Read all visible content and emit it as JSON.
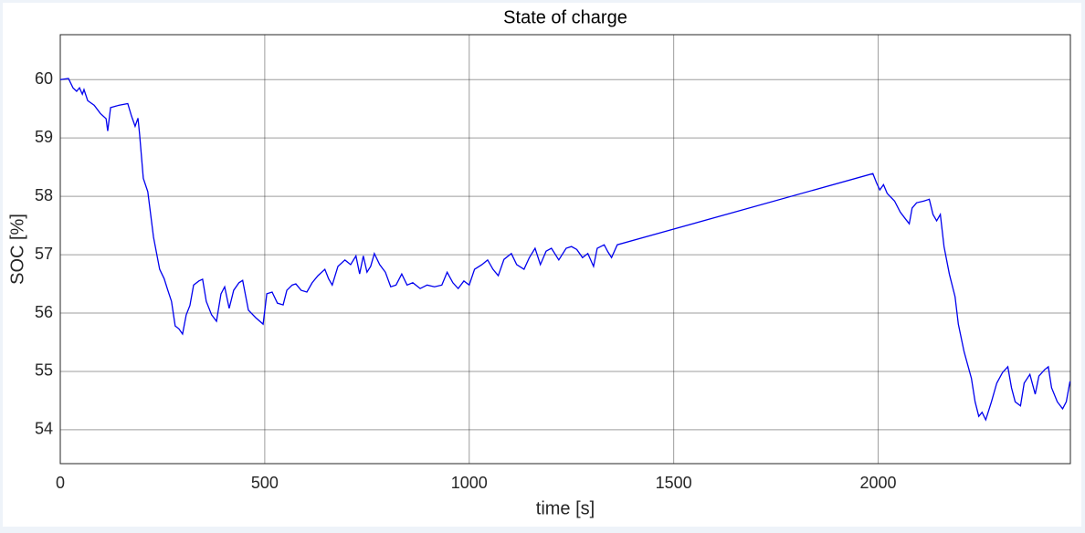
{
  "chart_data": {
    "type": "line",
    "title": "State of charge",
    "x_label": "time [s]",
    "y_label": "SOC [%]",
    "xlim": [
      0,
      2470
    ],
    "ylim": [
      53.42,
      60.77
    ],
    "xticks": [
      0,
      500,
      1000,
      1500,
      2000
    ],
    "yticks": [
      54,
      55,
      56,
      57,
      58,
      59,
      60
    ],
    "grid": true,
    "series": [
      {
        "name": "SOC",
        "color": "#0000ee",
        "x": [
          0,
          20,
          31,
          40,
          47,
          54,
          58,
          67,
          83,
          98,
          112,
          116,
          123,
          143,
          165,
          174,
          183,
          190,
          194,
          203,
          214,
          228,
          243,
          254,
          263,
          272,
          281,
          290,
          299,
          308,
          317,
          326,
          339,
          348,
          357,
          370,
          382,
          393,
          402,
          413,
          424,
          437,
          446,
          460,
          478,
          496,
          505,
          518,
          531,
          545,
          554,
          567,
          576,
          589,
          603,
          616,
          630,
          647,
          656,
          665,
          679,
          696,
          710,
          723,
          732,
          741,
          750,
          759,
          768,
          781,
          795,
          808,
          821,
          835,
          848,
          862,
          880,
          897,
          915,
          933,
          946,
          960,
          973,
          987,
          1000,
          1013,
          1031,
          1045,
          1058,
          1071,
          1085,
          1103,
          1116,
          1134,
          1147,
          1161,
          1174,
          1188,
          1201,
          1219,
          1237,
          1250,
          1263,
          1277,
          1290,
          1304,
          1313,
          1330,
          1339,
          1348,
          1362,
          1987,
          1996,
          2004,
          2013,
          2022,
          2040,
          2054,
          2067,
          2076,
          2083,
          2094,
          2112,
          2125,
          2134,
          2143,
          2152,
          2161,
          2174,
          2188,
          2196,
          2210,
          2219,
          2228,
          2237,
          2246,
          2254,
          2263,
          2277,
          2290,
          2304,
          2317,
          2326,
          2335,
          2348,
          2357,
          2371,
          2384,
          2393,
          2407,
          2416,
          2424,
          2438,
          2451,
          2460,
          2469
        ],
        "values": [
          60.0,
          60.02,
          59.86,
          59.8,
          59.86,
          59.75,
          59.83,
          59.64,
          59.56,
          59.42,
          59.33,
          59.12,
          59.52,
          59.56,
          59.59,
          59.38,
          59.2,
          59.34,
          59.06,
          58.31,
          58.08,
          57.3,
          56.75,
          56.59,
          56.39,
          56.2,
          55.78,
          55.73,
          55.64,
          55.97,
          56.13,
          56.48,
          56.55,
          56.58,
          56.2,
          55.97,
          55.86,
          56.33,
          56.45,
          56.08,
          56.39,
          56.52,
          56.56,
          56.05,
          55.92,
          55.81,
          56.33,
          56.36,
          56.17,
          56.14,
          56.39,
          56.48,
          56.5,
          56.39,
          56.36,
          56.52,
          56.64,
          56.75,
          56.59,
          56.48,
          56.8,
          56.91,
          56.83,
          56.98,
          56.67,
          56.98,
          56.7,
          56.8,
          57.02,
          56.83,
          56.7,
          56.45,
          56.48,
          56.67,
          56.48,
          56.52,
          56.42,
          56.48,
          56.45,
          56.48,
          56.7,
          56.52,
          56.42,
          56.55,
          56.48,
          56.75,
          56.83,
          56.91,
          56.75,
          56.64,
          56.92,
          57.02,
          56.83,
          56.75,
          56.95,
          57.11,
          56.83,
          57.06,
          57.11,
          56.91,
          57.11,
          57.14,
          57.09,
          56.95,
          57.02,
          56.8,
          57.11,
          57.17,
          57.05,
          56.95,
          57.17,
          58.39,
          58.23,
          58.11,
          58.2,
          58.05,
          57.92,
          57.73,
          57.61,
          57.53,
          57.8,
          57.89,
          57.92,
          57.95,
          57.69,
          57.58,
          57.69,
          57.14,
          56.67,
          56.28,
          55.81,
          55.34,
          55.11,
          54.88,
          54.48,
          54.23,
          54.3,
          54.17,
          54.48,
          54.8,
          54.98,
          55.08,
          54.72,
          54.48,
          54.41,
          54.8,
          54.95,
          54.61,
          54.92,
          55.03,
          55.08,
          54.72,
          54.48,
          54.36,
          54.48,
          54.83
        ]
      }
    ]
  }
}
